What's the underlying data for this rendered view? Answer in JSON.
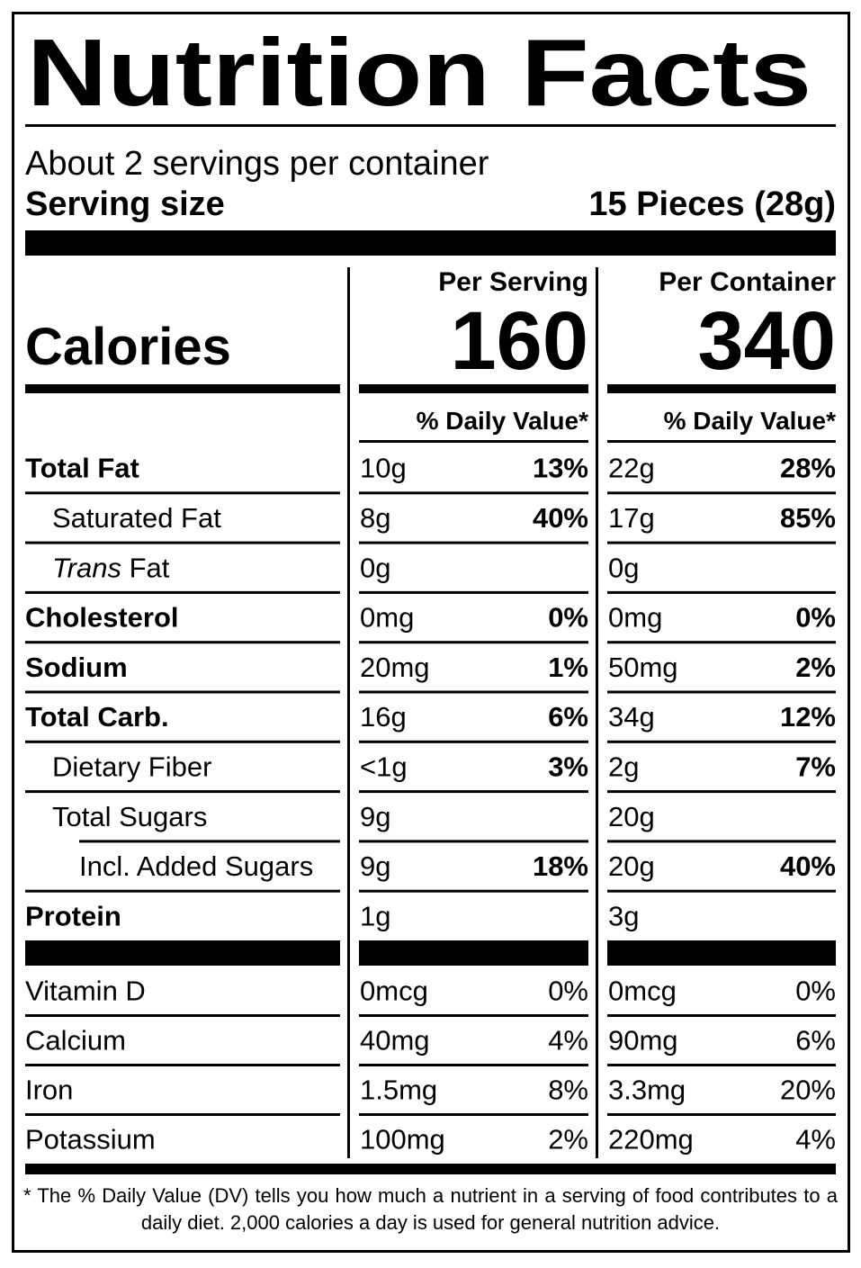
{
  "title": "Nutrition Facts",
  "servings": "About 2 servings per container",
  "serving_size": {
    "label": "Serving size",
    "value": "15 Pieces (28g)"
  },
  "calories_label": "Calories",
  "columns": [
    {
      "heading": "Per Serving",
      "calories": "160",
      "dv_header": "% Daily Value*"
    },
    {
      "heading": "Per Container",
      "calories": "340",
      "dv_header": "% Daily Value*"
    }
  ],
  "nutrients": [
    {
      "name": "Total Fat",
      "bold": true,
      "indent": 0,
      "values": [
        [
          "10g",
          "13%"
        ],
        [
          "22g",
          "28%"
        ]
      ]
    },
    {
      "name": "Saturated Fat",
      "bold": false,
      "indent": 1,
      "values": [
        [
          "8g",
          "40%"
        ],
        [
          "17g",
          "85%"
        ]
      ]
    },
    {
      "name_italic": "Trans",
      "name": "Fat",
      "bold": false,
      "indent": 1,
      "values": [
        [
          "0g",
          null
        ],
        [
          "0g",
          null
        ]
      ]
    },
    {
      "name": "Cholesterol",
      "bold": true,
      "indent": 0,
      "values": [
        [
          "0mg",
          "0%"
        ],
        [
          "0mg",
          "0%"
        ]
      ]
    },
    {
      "name": "Sodium",
      "bold": true,
      "indent": 0,
      "values": [
        [
          "20mg",
          "1%"
        ],
        [
          "50mg",
          "2%"
        ]
      ]
    },
    {
      "name": "Total Carb.",
      "bold": true,
      "indent": 0,
      "values": [
        [
          "16g",
          "6%"
        ],
        [
          "34g",
          "12%"
        ]
      ]
    },
    {
      "name": "Dietary Fiber",
      "bold": false,
      "indent": 1,
      "values": [
        [
          "<1g",
          "3%"
        ],
        [
          "2g",
          "7%"
        ]
      ]
    },
    {
      "name": "Total Sugars",
      "bold": false,
      "indent": 1,
      "values": [
        [
          "9g",
          null
        ],
        [
          "20g",
          null
        ]
      ]
    },
    {
      "name": "Incl. Added Sugars",
      "bold": false,
      "indent": 2,
      "values": [
        [
          "9g",
          "18%"
        ],
        [
          "20g",
          "40%"
        ]
      ]
    },
    {
      "name": "Protein",
      "bold": true,
      "indent": 0,
      "values": [
        [
          "1g",
          null
        ],
        [
          "3g",
          null
        ]
      ]
    }
  ],
  "vitamins": [
    {
      "name": "Vitamin D",
      "values": [
        [
          "0mcg",
          "0%"
        ],
        [
          "0mcg",
          "0%"
        ]
      ]
    },
    {
      "name": "Calcium",
      "values": [
        [
          "40mg",
          "4%"
        ],
        [
          "90mg",
          "6%"
        ]
      ]
    },
    {
      "name": "Iron",
      "values": [
        [
          "1.5mg",
          "8%"
        ],
        [
          "3.3mg",
          "20%"
        ]
      ]
    },
    {
      "name": "Potassium",
      "values": [
        [
          "100mg",
          "2%"
        ],
        [
          "220mg",
          "4%"
        ]
      ]
    }
  ],
  "footnote": {
    "marker": "*",
    "text": "The % Daily Value (DV) tells you how much a nutrient in a serving of food contributes to a daily diet. 2,000 calories a day is used for general nutrition advice."
  }
}
